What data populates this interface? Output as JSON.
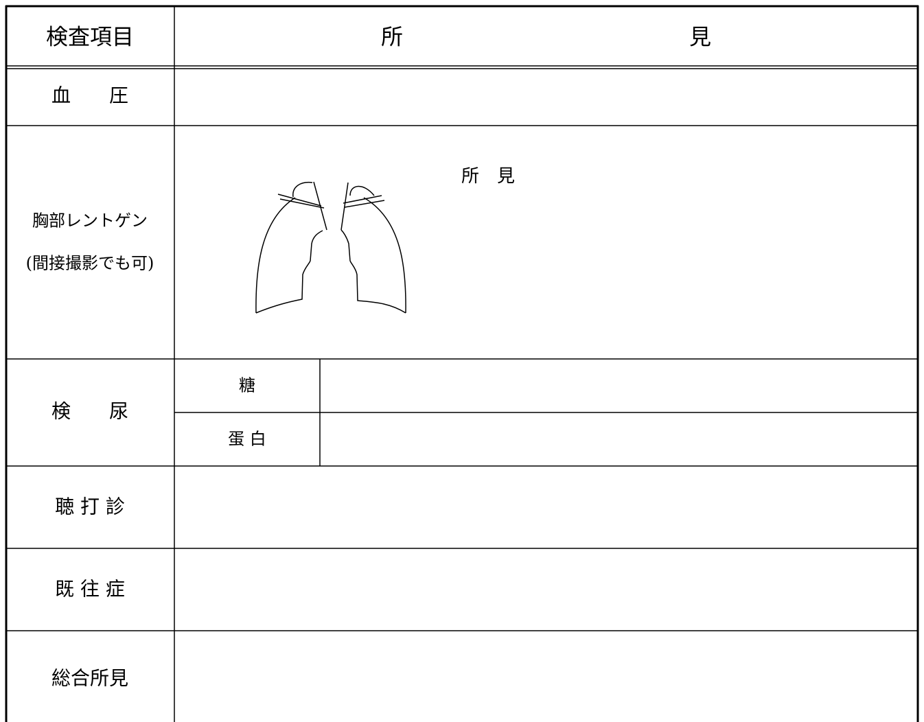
{
  "header": {
    "item": "検査項目",
    "finding": [
      "所",
      "見"
    ]
  },
  "rows": [
    {
      "label": "血　　圧"
    },
    {
      "label": [
        "胸部レントゲン",
        "(間接撮影でも可)"
      ],
      "note": "所　見"
    },
    {
      "label": "検　　尿",
      "sub": [
        "糖",
        "蛋 白"
      ]
    },
    {
      "label": "聴 打 診"
    },
    {
      "label": "既 往 症"
    },
    {
      "label": "総合所見"
    }
  ]
}
